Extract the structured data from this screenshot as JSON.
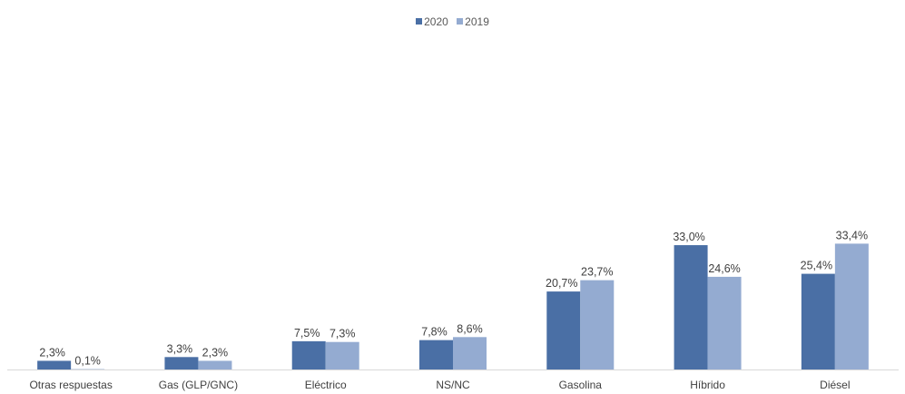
{
  "chart_data": {
    "type": "bar",
    "categories": [
      "Otras respuestas",
      "Gas (GLP/GNC)",
      "Eléctrico",
      "NS/NC",
      "Gasolina",
      "Híbrido",
      "Diésel"
    ],
    "series": [
      {
        "name": "2020",
        "color": "#4a6fa5",
        "values": [
          2.3,
          3.3,
          7.5,
          7.8,
          20.7,
          33.0,
          25.4
        ],
        "labels": [
          "2,3%",
          "3,3%",
          "7,5%",
          "7,8%",
          "20,7%",
          "33,0%",
          "25,4%"
        ]
      },
      {
        "name": "2019",
        "color": "#94abd1",
        "values": [
          0.1,
          2.3,
          7.3,
          8.6,
          23.7,
          24.6,
          33.4
        ],
        "labels": [
          "0,1%",
          "2,3%",
          "7,3%",
          "8,6%",
          "23,7%",
          "24,6%",
          "33,4%"
        ]
      }
    ],
    "ylim": [
      0,
      100
    ],
    "legend_position": "top-center",
    "grid": false
  }
}
